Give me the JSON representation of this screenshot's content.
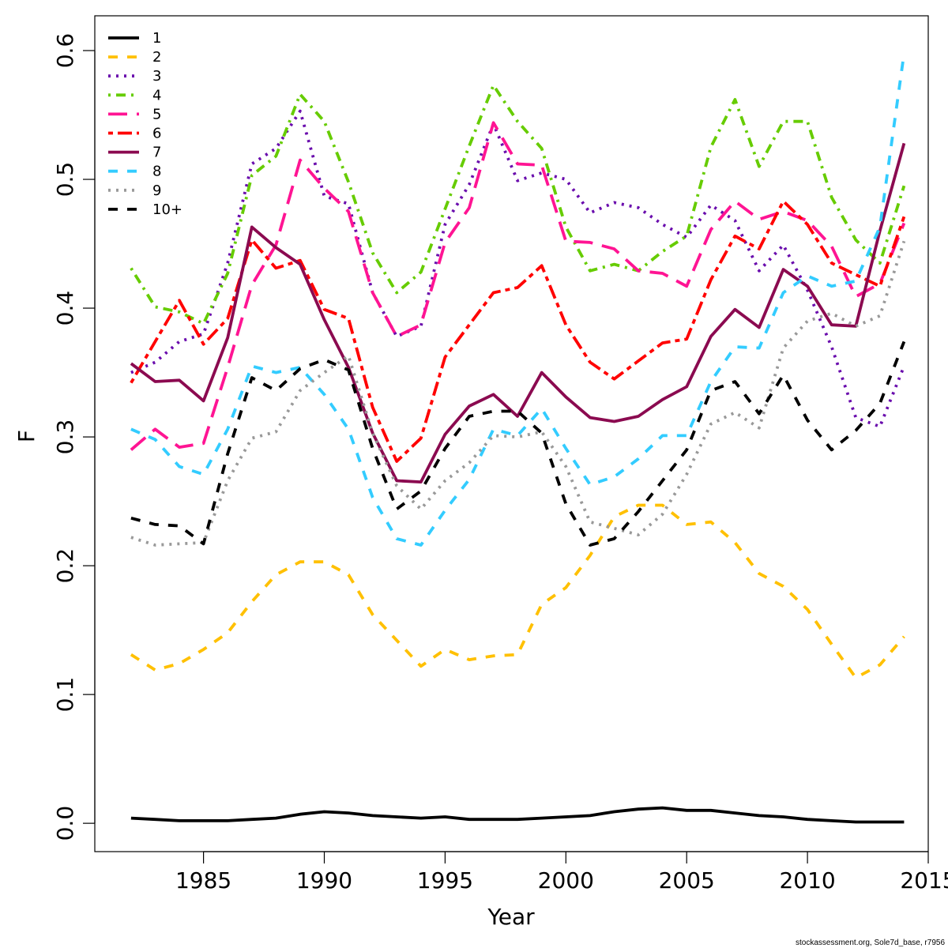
{
  "chart_data": {
    "type": "line",
    "xlabel": "Year",
    "ylabel": "F",
    "xlim": [
      1980.5,
      2015
    ],
    "ylim": [
      -0.022,
      0.627
    ],
    "x_ticks": [
      1985,
      1990,
      1995,
      2000,
      2005,
      2010,
      2015
    ],
    "y_ticks": [
      0.0,
      0.1,
      0.2,
      0.3,
      0.4,
      0.5,
      0.6
    ],
    "y_tick_labels": [
      "0.0",
      "0.1",
      "0.2",
      "0.3",
      "0.4",
      "0.5",
      "0.6"
    ],
    "grid": false,
    "legend_position": "top-left",
    "x": [
      1982,
      1983,
      1984,
      1985,
      1986,
      1987,
      1988,
      1989,
      1990,
      1991,
      1992,
      1993,
      1994,
      1995,
      1996,
      1997,
      1998,
      1999,
      2000,
      2001,
      2002,
      2003,
      2004,
      2005,
      2006,
      2007,
      2008,
      2009,
      2010,
      2011,
      2012,
      2013,
      2014
    ],
    "series": [
      {
        "name": "1",
        "color": "#000000",
        "dash": "solid",
        "values": [
          0.004,
          0.003,
          0.002,
          0.002,
          0.002,
          0.003,
          0.004,
          0.007,
          0.009,
          0.008,
          0.006,
          0.005,
          0.004,
          0.005,
          0.003,
          0.003,
          0.003,
          0.004,
          0.005,
          0.006,
          0.009,
          0.011,
          0.012,
          0.01,
          0.01,
          0.008,
          0.006,
          0.005,
          0.003,
          0.002,
          0.001,
          0.001,
          0.001
        ]
      },
      {
        "name": "2",
        "color": "#FFC000",
        "dash": "dashed",
        "values": [
          0.131,
          0.119,
          0.124,
          0.135,
          0.148,
          0.172,
          0.193,
          0.203,
          0.203,
          0.193,
          0.162,
          0.142,
          0.122,
          0.135,
          0.127,
          0.13,
          0.131,
          0.17,
          0.183,
          0.208,
          0.238,
          0.247,
          0.247,
          0.232,
          0.234,
          0.218,
          0.194,
          0.184,
          0.166,
          0.139,
          0.113,
          0.123,
          0.145
        ]
      },
      {
        "name": "3",
        "color": "#6A0DAD",
        "dash": "dotted",
        "values": [
          0.35,
          0.358,
          0.374,
          0.38,
          0.435,
          0.512,
          0.524,
          0.553,
          0.487,
          0.481,
          0.412,
          0.378,
          0.386,
          0.465,
          0.496,
          0.543,
          0.499,
          0.505,
          0.5,
          0.474,
          0.482,
          0.478,
          0.465,
          0.455,
          0.48,
          0.468,
          0.429,
          0.449,
          0.414,
          0.37,
          0.315,
          0.308,
          0.355
        ]
      },
      {
        "name": "4",
        "color": "#66CC00",
        "dash": "dot-dash",
        "values": [
          0.431,
          0.401,
          0.397,
          0.388,
          0.427,
          0.503,
          0.518,
          0.566,
          0.545,
          0.498,
          0.443,
          0.412,
          0.428,
          0.477,
          0.526,
          0.573,
          0.545,
          0.524,
          0.463,
          0.429,
          0.434,
          0.429,
          0.444,
          0.456,
          0.525,
          0.562,
          0.51,
          0.545,
          0.545,
          0.486,
          0.453,
          0.435,
          0.495
        ]
      },
      {
        "name": "5",
        "color": "#FF1493",
        "dash": "longdash",
        "values": [
          0.29,
          0.306,
          0.292,
          0.295,
          0.354,
          0.418,
          0.449,
          0.515,
          0.493,
          0.475,
          0.412,
          0.378,
          0.387,
          0.451,
          0.478,
          0.544,
          0.512,
          0.511,
          0.452,
          0.451,
          0.446,
          0.429,
          0.427,
          0.417,
          0.461,
          0.483,
          0.469,
          0.475,
          0.468,
          0.448,
          0.409,
          0.419,
          0.466
        ]
      },
      {
        "name": "6",
        "color": "#FF0000",
        "dash": "twodash",
        "values": [
          0.342,
          0.374,
          0.406,
          0.372,
          0.392,
          0.453,
          0.431,
          0.437,
          0.399,
          0.392,
          0.323,
          0.281,
          0.299,
          0.362,
          0.387,
          0.412,
          0.416,
          0.433,
          0.387,
          0.358,
          0.345,
          0.359,
          0.373,
          0.376,
          0.422,
          0.456,
          0.446,
          0.483,
          0.465,
          0.435,
          0.426,
          0.417,
          0.471
        ]
      },
      {
        "name": "7",
        "color": "#8B0A50",
        "dash": "solid",
        "values": [
          0.357,
          0.343,
          0.344,
          0.328,
          0.377,
          0.463,
          0.447,
          0.434,
          0.391,
          0.354,
          0.303,
          0.266,
          0.265,
          0.302,
          0.324,
          0.333,
          0.316,
          0.35,
          0.331,
          0.315,
          0.312,
          0.316,
          0.329,
          0.339,
          0.378,
          0.399,
          0.385,
          0.43,
          0.417,
          0.387,
          0.386,
          0.46,
          0.528
        ]
      },
      {
        "name": "8",
        "color": "#33CCFF",
        "dash": "dashed",
        "values": [
          0.306,
          0.298,
          0.277,
          0.271,
          0.306,
          0.355,
          0.35,
          0.354,
          0.333,
          0.306,
          0.253,
          0.221,
          0.216,
          0.243,
          0.267,
          0.306,
          0.301,
          0.322,
          0.291,
          0.263,
          0.269,
          0.283,
          0.301,
          0.301,
          0.343,
          0.37,
          0.369,
          0.412,
          0.425,
          0.417,
          0.421,
          0.463,
          0.598
        ]
      },
      {
        "name": "9",
        "color": "#999999",
        "dash": "dotted",
        "values": [
          0.222,
          0.216,
          0.217,
          0.218,
          0.266,
          0.299,
          0.304,
          0.336,
          0.35,
          0.363,
          0.303,
          0.262,
          0.244,
          0.266,
          0.28,
          0.301,
          0.3,
          0.304,
          0.277,
          0.234,
          0.229,
          0.224,
          0.24,
          0.271,
          0.31,
          0.319,
          0.307,
          0.369,
          0.39,
          0.396,
          0.386,
          0.394,
          0.452
        ]
      },
      {
        "name": "10+",
        "color": "#000000",
        "dash": "dashed",
        "values": [
          0.237,
          0.232,
          0.231,
          0.217,
          0.287,
          0.346,
          0.336,
          0.353,
          0.36,
          0.352,
          0.291,
          0.244,
          0.258,
          0.291,
          0.316,
          0.32,
          0.32,
          0.303,
          0.248,
          0.216,
          0.221,
          0.242,
          0.266,
          0.29,
          0.336,
          0.343,
          0.318,
          0.348,
          0.313,
          0.29,
          0.305,
          0.326,
          0.374
        ]
      }
    ]
  },
  "credit": "stockassessment.org, Sole7d_base, r7956"
}
